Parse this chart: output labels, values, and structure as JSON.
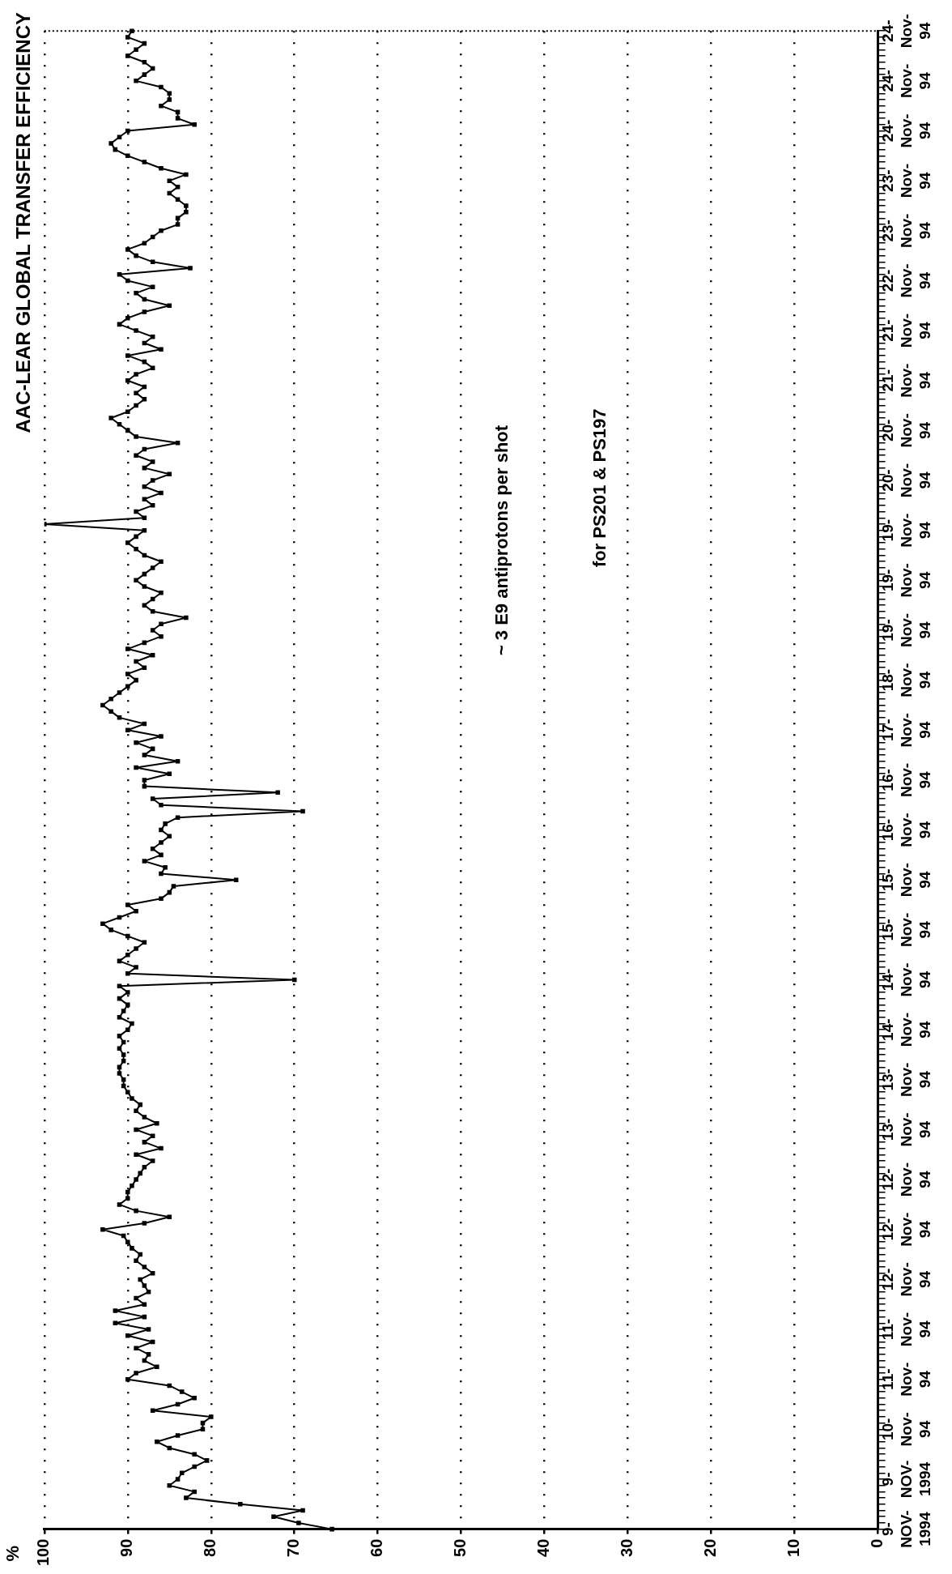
{
  "chart_data": {
    "type": "line",
    "orientation": "horizontal",
    "title": "AAC-LEAR GLOBAL TRANSFER EFFICIENCY",
    "annotations": [
      "~ 3 E9 antiprotons per shot",
      "for PS201 & PS197",
      "%"
    ],
    "categories": [
      "24-Nov-94",
      null,
      null,
      null,
      null,
      null,
      null,
      null,
      "24-Nov-94",
      null,
      null,
      null,
      null,
      null,
      null,
      null,
      "24-Nov-94",
      null,
      null,
      null,
      null,
      null,
      null,
      null,
      "23-Nov-94",
      null,
      null,
      null,
      null,
      null,
      null,
      null,
      "23-Nov-94",
      null,
      null,
      null,
      null,
      null,
      null,
      null,
      "22-Nov-94",
      null,
      null,
      null,
      null,
      null,
      null,
      null,
      "21-Nov-94",
      null,
      null,
      null,
      null,
      null,
      null,
      null,
      "21-Nov-94",
      null,
      null,
      null,
      null,
      null,
      null,
      null,
      "20-Nov-94",
      null,
      null,
      null,
      null,
      null,
      null,
      null,
      "20-Nov-94",
      null,
      null,
      null,
      null,
      null,
      null,
      null,
      "19-Nov-94",
      null,
      null,
      null,
      null,
      null,
      null,
      null,
      "19-Nov-94",
      null,
      null,
      null,
      null,
      null,
      null,
      null,
      "19-Nov-94",
      null,
      null,
      null,
      null,
      null,
      null,
      null,
      "18-Nov-94",
      null,
      null,
      null,
      null,
      null,
      null,
      null,
      "17-Nov-94",
      null,
      null,
      null,
      null,
      null,
      null,
      null,
      "16-Nov-94",
      null,
      null,
      null,
      null,
      null,
      null,
      null,
      "16-Nov-94",
      null,
      null,
      null,
      null,
      null,
      null,
      null,
      "15-Nov-94",
      null,
      null,
      null,
      null,
      null,
      null,
      null,
      "15-Nov-94",
      null,
      null,
      null,
      null,
      null,
      null,
      null,
      "14-Nov-94",
      null,
      null,
      null,
      null,
      null,
      null,
      null,
      "14-Nov-94",
      null,
      null,
      null,
      null,
      null,
      null,
      null,
      "13-Nov-94",
      null,
      null,
      null,
      null,
      null,
      null,
      null,
      "13-Nov-94",
      null,
      null,
      null,
      null,
      null,
      null,
      null,
      "12-Nov-94",
      null,
      null,
      null,
      null,
      null,
      null,
      null,
      "12-Nov-94",
      null,
      null,
      null,
      null,
      null,
      null,
      null,
      "12-Nov-94",
      null,
      null,
      null,
      null,
      null,
      null,
      null,
      "11-Nov-94",
      null,
      null,
      null,
      null,
      null,
      null,
      null,
      "11-Nov-94",
      null,
      null,
      null,
      null,
      null,
      null,
      null,
      "10-Nov-94",
      null,
      null,
      null,
      null,
      null,
      null,
      null,
      "9-NOV-1994",
      null,
      null,
      null,
      null,
      null,
      null,
      null,
      "9-NOV-1994"
    ],
    "series": [
      {
        "color": "#000000",
        "values": [
          89.5,
          90,
          88,
          89,
          90,
          88,
          87,
          88,
          89,
          86,
          85,
          85,
          86,
          84,
          84,
          82,
          90,
          91,
          92,
          91.5,
          90,
          88,
          86,
          83,
          85,
          84,
          85,
          84,
          83,
          83,
          84,
          84,
          86,
          87,
          88,
          90,
          89,
          87,
          82.5,
          91,
          90,
          87,
          89,
          88,
          85,
          88,
          90,
          91,
          89,
          87,
          88,
          86,
          90,
          88,
          87,
          89,
          90,
          88,
          89,
          88,
          89,
          90,
          92,
          91,
          90,
          89,
          84,
          88,
          89,
          87,
          88,
          85,
          87,
          88,
          86,
          88,
          87,
          89,
          88,
          100,
          88,
          89,
          90,
          89,
          88,
          86,
          87,
          88,
          89,
          88,
          86,
          87,
          88,
          87,
          83,
          86,
          87,
          86,
          88,
          90,
          87,
          89,
          88,
          90,
          89,
          90,
          91,
          92,
          93,
          92,
          91,
          88,
          90,
          86,
          89,
          87,
          88,
          84,
          89,
          85,
          88,
          88,
          72,
          87,
          86,
          69,
          84,
          85.5,
          86,
          85,
          86,
          87,
          86,
          88,
          85.5,
          86,
          77,
          84.5,
          85,
          86,
          90,
          89,
          91,
          93,
          92,
          90,
          88,
          89,
          90,
          91,
          89,
          90,
          70,
          91,
          90,
          91,
          90,
          90.5,
          91,
          89.5,
          90,
          91,
          90.5,
          91,
          90.5,
          90.5,
          91,
          91,
          90.5,
          90.5,
          90,
          89.5,
          88.5,
          89,
          88,
          86.5,
          89,
          87,
          88,
          86,
          89,
          87,
          88,
          88.5,
          89,
          89.5,
          90,
          90,
          91,
          89,
          85,
          88,
          93,
          90.5,
          90,
          89.5,
          88.5,
          89,
          88,
          87,
          88.5,
          88,
          87.5,
          89,
          88,
          91.5,
          88,
          91.5,
          87.5,
          90,
          87,
          89,
          87.5,
          88,
          86.5,
          89,
          90,
          85,
          83.5,
          82,
          84,
          87,
          80,
          81,
          81,
          84,
          86.5,
          85,
          82,
          80.5,
          82,
          83.5,
          84,
          85,
          82,
          83,
          76.5,
          69,
          72.5,
          69.5,
          65.5
        ]
      }
    ],
    "xlim": [
      100,
      0
    ],
    "xticks": [
      100,
      90,
      80,
      70,
      60,
      50,
      40,
      30,
      20,
      10,
      0
    ],
    "grid": "x",
    "legend": false,
    "marker": "square",
    "line_style": "solid"
  }
}
